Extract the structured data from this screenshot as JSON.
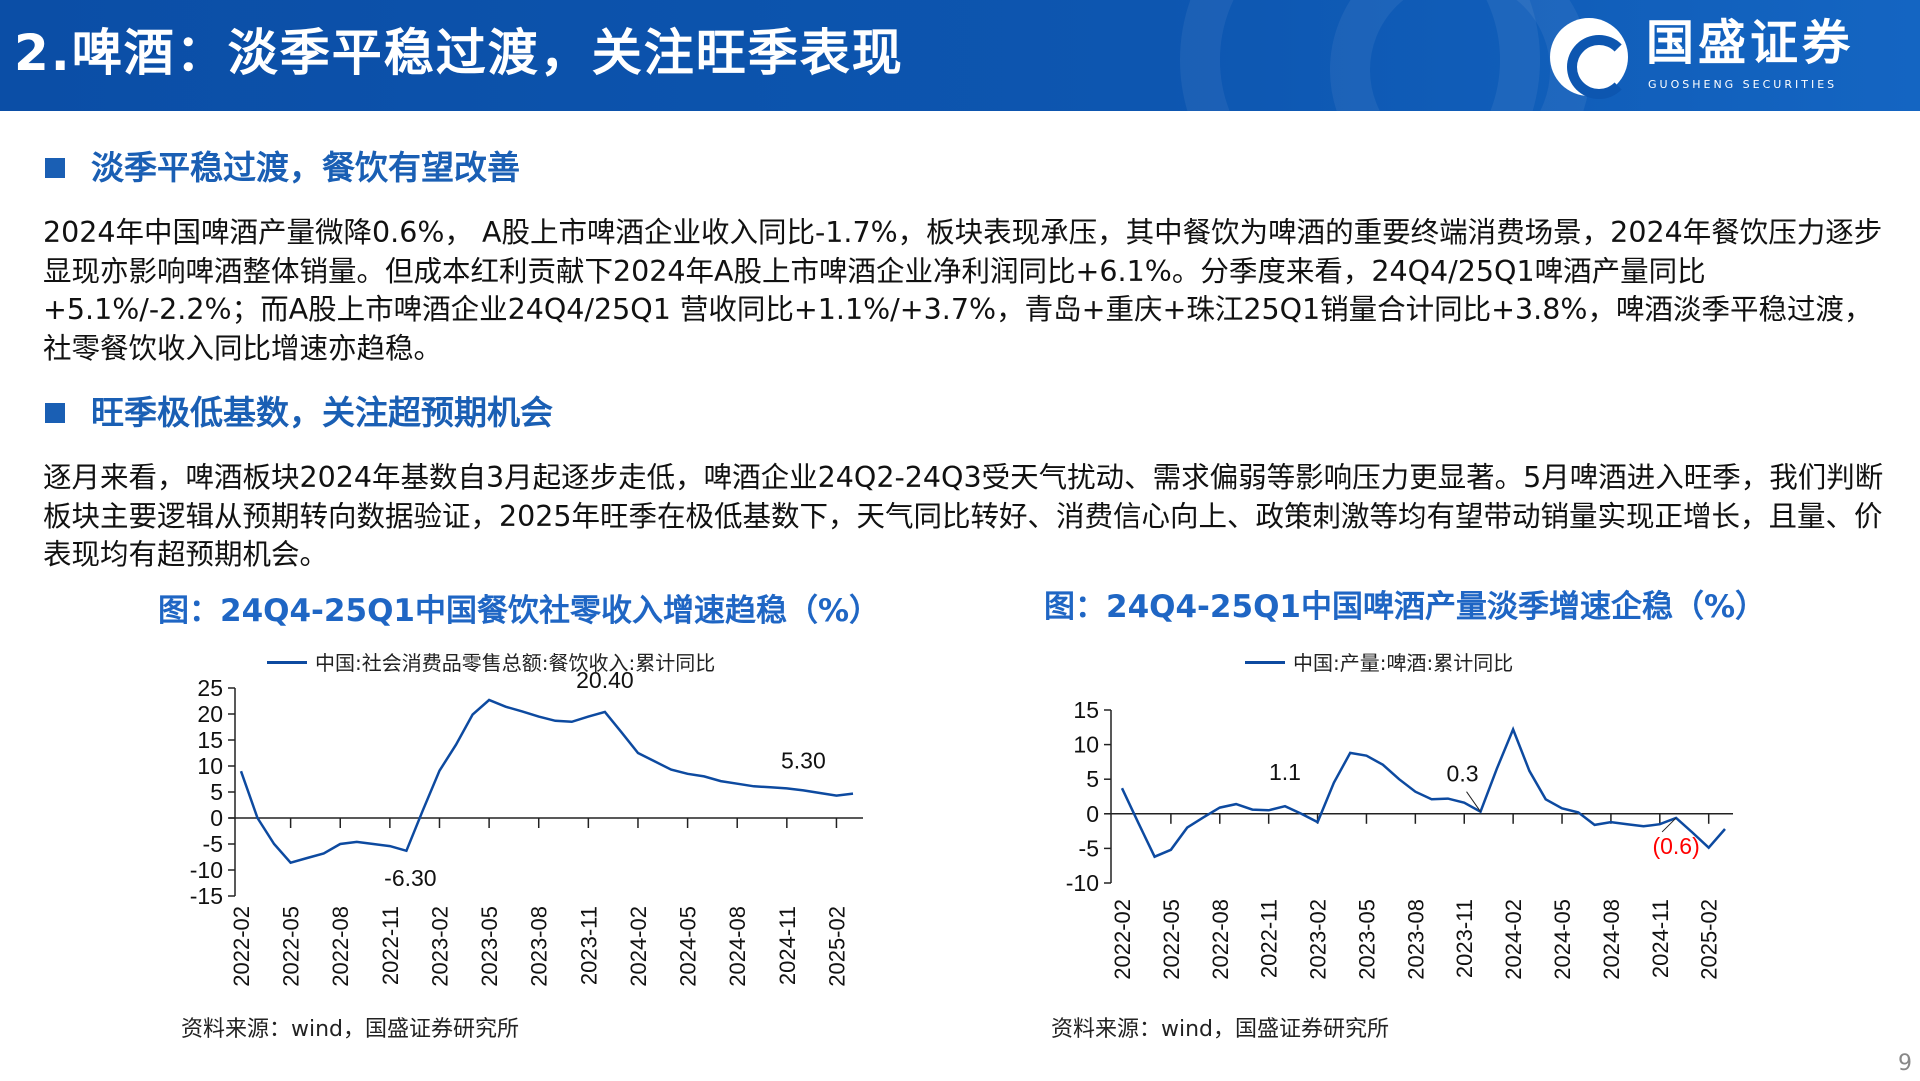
{
  "header": {
    "title": "2.啤酒：淡季平稳过渡，关注旺季表现",
    "logo_cn": "国盛证券",
    "logo_en": "GUOSHENG SECURITIES",
    "bg_color": "#0d56b0"
  },
  "sections": [
    {
      "heading": "淡季平稳过渡，餐饮有望改善",
      "body": "2024年中国啤酒产量微降0.6%， A股上市啤酒企业收入同比-1.7%，板块表现承压，其中餐饮为啤酒的重要终端消费场景，2024年餐饮压力逐步显现亦影响啤酒整体销量。但成本红利贡献下2024年A股上市啤酒企业净利润同比+6.1%。分季度来看，24Q4/25Q1啤酒产量同比+5.1%/-2.2%；而A股上市啤酒企业24Q4/25Q1 营收同比+1.1%/+3.7%，青岛+重庆+珠江25Q1销量合计同比+3.8%，啤酒淡季平稳过渡，社零餐饮收入同比增速亦趋稳。"
    },
    {
      "heading": "旺季极低基数，关注超预期机会",
      "body": "逐月来看，啤酒板块2024年基数自3月起逐步走低，啤酒企业24Q2-24Q3受天气扰动、需求偏弱等影响压力更显著。5月啤酒进入旺季，我们判断板块主要逻辑从预期转向数据验证，2025年旺季在极低基数下，天气同比转好、消费信心向上、政策刺激等均有望带动销量实现正增长，且量、价表现均有超预期机会。"
    }
  ],
  "page_number": "9",
  "chart_data": [
    {
      "type": "line",
      "title": "图：24Q4-25Q1中国餐饮社零收入增速趋稳（%）",
      "legend": "中国:社会消费品零售总额:餐饮收入:累计同比",
      "legend_position": "top",
      "ylim": [
        -15,
        25
      ],
      "yticks": [
        25,
        20,
        15,
        10,
        5,
        0,
        -5,
        -10,
        -15
      ],
      "xticks": [
        "2022-02",
        "2022-05",
        "2022-08",
        "2022-11",
        "2023-02",
        "2023-05",
        "2023-08",
        "2023-11",
        "2024-02",
        "2024-05",
        "2024-08",
        "2024-11",
        "2025-02"
      ],
      "x_start": "2022-02",
      "x_end": "2025-03",
      "series": [
        {
          "color": "#0d4aa0",
          "values": [
            9.0,
            0,
            -5.0,
            -8.6,
            -7.7,
            -6.8,
            -5.0,
            -4.6,
            -5.0,
            -5.4,
            -6.3,
            1.5,
            9.1,
            14.1,
            19.9,
            22.7,
            21.4,
            20.5,
            19.5,
            18.7,
            18.5,
            19.5,
            20.4,
            16.5,
            12.5,
            10.9,
            9.3,
            8.5,
            8.0,
            7.1,
            6.6,
            6.1,
            5.9,
            5.7,
            5.3,
            4.8,
            4.3,
            4.7
          ]
        }
      ],
      "annotations": [
        {
          "index": 22,
          "text": "20.40",
          "color": "#111"
        },
        {
          "index": 10,
          "text": "-6.30",
          "color": "#111"
        },
        {
          "index": 34,
          "text": "5.30",
          "color": "#111"
        }
      ],
      "source": "资料来源：wind，国盛证券研究所"
    },
    {
      "type": "line",
      "title": "图：24Q4-25Q1中国啤酒产量淡季增速企稳（%）",
      "legend": "中国:产量:啤酒:累计同比",
      "legend_position": "top",
      "ylim": [
        -10,
        15
      ],
      "yticks": [
        15,
        10,
        5,
        0,
        -5,
        -10
      ],
      "xticks": [
        "2022-02",
        "2022-05",
        "2022-08",
        "2022-11",
        "2023-02",
        "2023-05",
        "2023-08",
        "2023-11",
        "2024-02",
        "2024-05",
        "2024-08",
        "2024-11",
        "2025-02"
      ],
      "x_start": "2022-02",
      "x_end": "2025-03",
      "series": [
        {
          "color": "#0d4aa0",
          "values": [
            3.7,
            -1.3,
            -6.2,
            -5.2,
            -2.0,
            -0.5,
            0.9,
            1.4,
            0.6,
            0.5,
            1.1,
            0.0,
            -1.2,
            4.5,
            8.8,
            8.4,
            7.1,
            5.0,
            3.2,
            2.1,
            2.2,
            1.6,
            0.3,
            6.5,
            12.2,
            6.2,
            2.1,
            0.8,
            0.2,
            -1.6,
            -1.2,
            -1.5,
            -1.8,
            -1.5,
            -0.6,
            -2.7,
            -4.9,
            -2.2
          ]
        }
      ],
      "annotations": [
        {
          "index": 10,
          "text": "1.1",
          "color": "#111"
        },
        {
          "index": 22,
          "text": "0.3",
          "color": "#111"
        },
        {
          "index": 34,
          "text": "(0.6)",
          "color": "#ff0000"
        }
      ],
      "source": "资料来源：wind，国盛证券研究所"
    }
  ]
}
